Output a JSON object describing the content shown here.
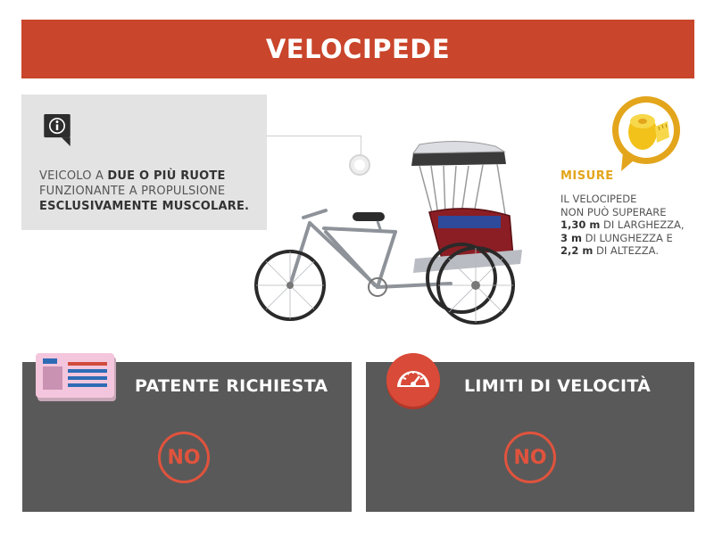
{
  "header": {
    "title": "VELOCIPEDE"
  },
  "info": {
    "icon": "info-icon",
    "line1_prefix": "VEICOLO A ",
    "line1_bold": "DUE O PIÙ RUOTE",
    "line2": "FUNZIONANTE A PROPULSIONE",
    "line3_bold": "ESCLUSIVAMENTE MUSCOLARE."
  },
  "image": {
    "subject": "cycle-rickshaw-icon"
  },
  "measures": {
    "icon": "tape-measure-icon",
    "title": "MISURE",
    "line1": "IL VELOCIPEDE",
    "line2": "NON PUÒ SUPERARE",
    "width_value": "1,30 m",
    "width_label": " DI LARGHEZZA,",
    "length_value": "3 m",
    "length_label": " DI LUNGHEZZA E",
    "height_value": "2,2 m",
    "height_label": " DI ALTEZZA."
  },
  "cards": {
    "license": {
      "icon": "license-card-icon",
      "title": "PATENTE RICHIESTA",
      "value": "NO"
    },
    "speed": {
      "icon": "speedometer-icon",
      "title": "LIMITI DI VELOCITÀ",
      "value": "NO"
    }
  },
  "colors": {
    "accent": "#c9452b",
    "measure_accent": "#e3a51b",
    "card_bg": "#595959",
    "no_color": "#e0533d"
  }
}
